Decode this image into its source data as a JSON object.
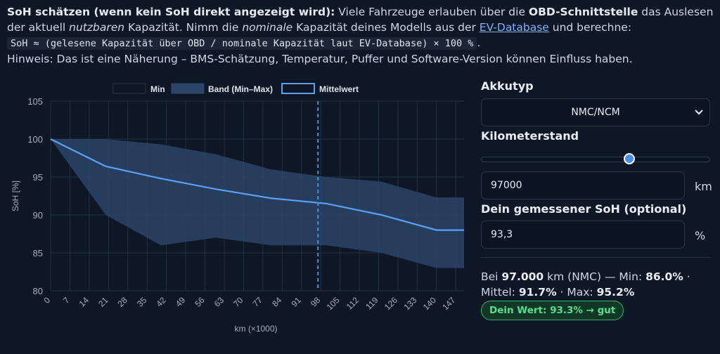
{
  "intro": {
    "heading": "SoH schätzen (wenn kein SoH direkt angezeigt wird):",
    "t1": " Viele Fahrzeuge erlauben über die ",
    "obd": "OBD-Schnittstelle",
    "t2": " das Auslesen der aktuell ",
    "nutzbaren": "nutzbaren",
    "t3": " Kapazität. Nimm die ",
    "nominale": "nominale",
    "t4": " Kapazität deines Modells aus der ",
    "link": "EV-Database",
    "t5": " und berechne:",
    "formula": "SoH ≈ (gelesene Kapazität über OBD / nominale Kapazität laut EV-Database) × 100 %",
    "t6": ".",
    "hint": "Hinweis: Das ist eine Näherung – BMS-Schätzung, Temperatur, Puffer und Software-Version können Einfluss haben."
  },
  "chart_data": {
    "type": "line",
    "x": [
      0,
      20,
      40,
      60,
      80,
      100,
      120,
      140,
      150
    ],
    "series": [
      {
        "name": "Min",
        "values": [
          100,
          90,
          86,
          87,
          86,
          86,
          85,
          83,
          83
        ]
      },
      {
        "name": "Max",
        "values": [
          100,
          100,
          99.3,
          98,
          96,
          95,
          94.4,
          92.3,
          92.3
        ]
      },
      {
        "name": "Mittelwert",
        "values": [
          100,
          96.4,
          94.8,
          93.4,
          92.2,
          91.5,
          90,
          88,
          88
        ]
      }
    ],
    "legend": [
      "Min",
      "Band (Min–Max)",
      "Mittelwert"
    ],
    "legend_position": "top",
    "xlabel": "km (×1000)",
    "ylabel": "SoH [%]",
    "xlim": [
      0,
      150
    ],
    "ylim": [
      80,
      105
    ],
    "xticks": [
      0,
      7,
      14,
      21,
      28,
      35,
      42,
      49,
      56,
      63,
      70,
      77,
      84,
      91,
      98,
      105,
      112,
      119,
      126,
      133,
      140,
      147
    ],
    "yticks": [
      80,
      85,
      90,
      95,
      100,
      105
    ],
    "marker_x": 97,
    "grid": true,
    "colors": {
      "mean": "#5aa0f5",
      "band": "#2b4468",
      "marker": "#4a90e2"
    }
  },
  "panel": {
    "akkutyp_label": "Akkutyp",
    "akkutyp_value": "NMC/NCM",
    "km_label": "Kilometerstand",
    "km_slider": {
      "min": 0,
      "max": 150000,
      "value": 97000
    },
    "km_value": "97000",
    "km_unit": "km",
    "soh_label": "Dein gemessener SoH (optional)",
    "soh_value": "93,3",
    "soh_unit": "%",
    "result": {
      "p1": "Bei ",
      "km": "97.000",
      "p2": " km (NMC) — Min: ",
      "min": "86.0%",
      "p3": " · Mittel: ",
      "mittel": "91.7%",
      "p4": " · Max: ",
      "max": "95.2%"
    },
    "badge": "Dein Wert: 93.3% → gut"
  }
}
